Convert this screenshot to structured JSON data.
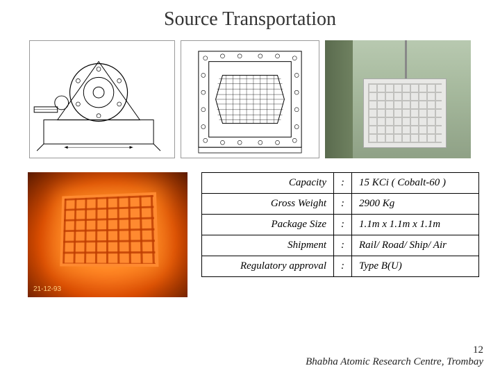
{
  "title": "Source Transportation",
  "specs": [
    {
      "key": "Capacity",
      "value": "15 KCi  ( Cobalt-60 )"
    },
    {
      "key": "Gross Weight",
      "value": "2900 Kg"
    },
    {
      "key": "Package Size",
      "value": "1.1m x 1.1m x 1.1m"
    },
    {
      "key": "Shipment",
      "value": "Rail/ Road/ Ship/ Air"
    },
    {
      "key": "Regulatory approval",
      "value": "Type B(U)"
    }
  ],
  "separator": ":",
  "photo2_date": "21-12-93",
  "footer_org": "Bhabha Atomic Research Centre, Trombay",
  "page_number": "12",
  "colors": {
    "title": "#333333",
    "border": "#000000",
    "bg": "#ffffff"
  }
}
